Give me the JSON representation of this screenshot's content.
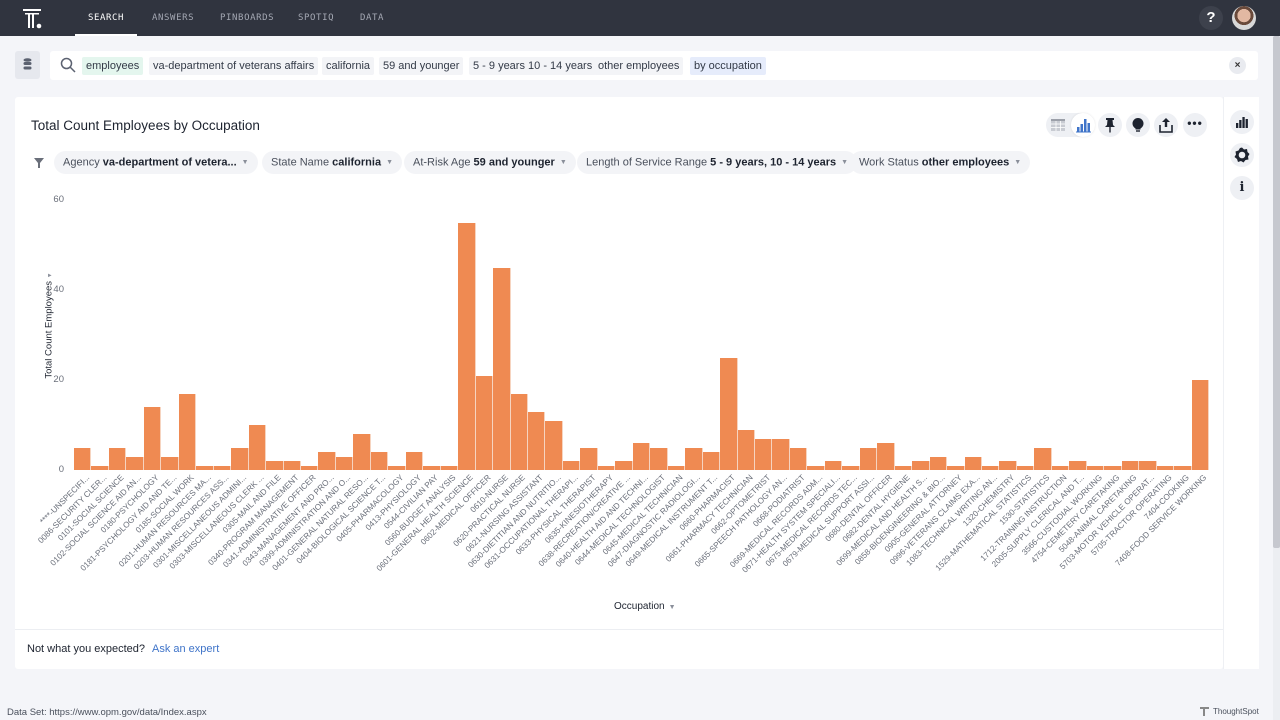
{
  "nav": {
    "tabs": [
      {
        "label": "SEARCH",
        "active": true
      },
      {
        "label": "ANSWERS",
        "active": false
      },
      {
        "label": "PINBOARDS",
        "active": false
      },
      {
        "label": "SPOTIQ",
        "active": false
      },
      {
        "label": "DATA",
        "active": false
      }
    ],
    "help_label": "?"
  },
  "search": {
    "tokens": [
      {
        "text": "employees",
        "style": "green"
      },
      {
        "text": "va-department of veterans affairs",
        "style": "plain"
      },
      {
        "text": "california",
        "style": "plain"
      },
      {
        "text": "59 and younger",
        "style": "plain"
      },
      {
        "text": "5 - 9 years 10 - 14 years",
        "style": "plain"
      },
      {
        "text": "other employees",
        "style": "plain"
      },
      {
        "text": "by occupation",
        "style": "blue"
      }
    ],
    "clear_label": "×"
  },
  "answer": {
    "title": "Total Count Employees by Occupation",
    "filters": [
      {
        "name": "Agency",
        "value": "va-department of vetera..."
      },
      {
        "name": "State Name",
        "value": "california"
      },
      {
        "name": "At-Risk Age",
        "value": "59 and younger"
      },
      {
        "name": "Length of Service Range",
        "value": "5 - 9 years, 10 - 14 years"
      },
      {
        "name": "Work Status",
        "value": "other employees"
      }
    ],
    "footer_question": "Not what you expected?",
    "footer_link": "Ask an expert"
  },
  "footer": {
    "dataset": "Data Set: https://www.opm.gov/data/Index.aspx",
    "brand": "ThoughtSpot"
  },
  "colors": {
    "bar": "#ef8a52",
    "nav_bg": "#30343f",
    "link": "#3f74c9",
    "chart_icon_active": "#3f74c9"
  },
  "chart_data": {
    "type": "bar",
    "title": "Total Count Employees by Occupation",
    "xlabel": "Occupation",
    "ylabel": "Total Count Employees",
    "ylim": [
      0,
      60
    ],
    "yticks": [
      0,
      20,
      40,
      60
    ],
    "grid": false,
    "legend": null,
    "categories": [
      "****-UNSPECIFI...",
      "0086-SECURITY CLER...",
      "0101-SOCIAL SCIENCE",
      "0102-SOCIAL SCIENCE AID AN...",
      "0180-PSYCHOLOGY",
      "0181-PSYCHOLOGY AID AND TE...",
      "0185-SOCIAL WORK",
      "0201-HUMAN RESOURCES MA...",
      "0203-HUMAN RESOURCES ASS...",
      "0301-MISCELLANEOUS ADMINI...",
      "0303-MISCELLANEOUS CLERK ...",
      "0305-MAIL AND FILE",
      "0340-PROGRAM MANAGEMENT",
      "0341-ADMINISTRATIVE OFFICER",
      "0343-MANAGEMENT AND PRO...",
      "0399-ADMINISTRATION AND O...",
      "0401-GENERAL NATURAL RESO...",
      "0404-BIOLOGICAL SCIENCE T...",
      "0405-PHARMACOLOGY",
      "0413-PHYSIOLOGY",
      "0544-CIVILIAN PAY",
      "0560-BUDGET ANALYSIS",
      "0601-GENERAL HEALTH SCIENCE",
      "0602-MEDICAL OFFICER",
      "0610-NURSE",
      "0620-PRACTICAL NURSE",
      "0621-NURSING ASSISTANT",
      "0630-DIETITIAN AND NUTRITIO...",
      "0631-OCCUPATIONAL THERAPI...",
      "0633-PHYSICAL THERAPIST",
      "0635-KINESIOTHERAPY",
      "0638-RECREATION/CREATIVE ...",
      "0640-HEALTH AID AND TECHNI...",
      "0644-MEDICAL TECHNOLOGIST",
      "0645-MEDICAL TECHNICIAN",
      "0647-DIAGNOSTIC RADIOLOGI...",
      "0649-MEDICAL INSTRUMENT T...",
      "0660-PHARMACIST",
      "0661-PHARMACY TECHNICIAN",
      "0662-OPTOMETRIST",
      "0665-SPEECH PATHOLOGY AN...",
      "0668-PODIATRIST",
      "0669-MEDICAL RECORDS ADM...",
      "0671-HEALTH SYSTEM SPECIALI...",
      "0675-MEDICAL RECORDS TEC...",
      "0679-MEDICAL SUPPORT ASSI...",
      "0680-DENTAL OFFICER",
      "0682-DENTAL HYGIENE",
      "0699-MEDICAL AND HEALTH S...",
      "0858-BIOENGINEERING & BIO...",
      "0905-GENERAL ATTORNEY",
      "0996-VETERANS CLAIMS EXA...",
      "1083-TECHNICAL WRITING AN...",
      "1320-CHEMISTRY",
      "1529-MATHEMATICAL STATISTICS",
      "1530-STATISTICS",
      "1712-TRAINING INSTRUCTION",
      "2005-SUPPLY CLERICAL AND T...",
      "3566-CUSTODIAL WORKING",
      "4754-CEMETERY CARETAKING",
      "5048-ANIMAL CARETAKING",
      "5703-MOTOR VEHICLE OPERAT...",
      "5705-TRACTOR OPERATING",
      "7404-COOKING",
      "7408-FOOD SERVICE WORKING"
    ],
    "values": [
      5,
      1,
      5,
      3,
      14,
      3,
      17,
      1,
      1,
      5,
      10,
      2,
      2,
      1,
      4,
      3,
      8,
      4,
      1,
      4,
      1,
      1,
      55,
      21,
      45,
      17,
      13,
      11,
      2,
      5,
      1,
      2,
      6,
      5,
      1,
      5,
      4,
      25,
      9,
      7,
      7,
      5,
      1,
      2,
      1,
      5,
      6,
      1,
      2,
      3,
      1,
      3,
      1,
      2,
      1,
      5,
      1,
      2,
      1,
      1,
      2,
      2,
      1,
      1,
      20
    ]
  }
}
